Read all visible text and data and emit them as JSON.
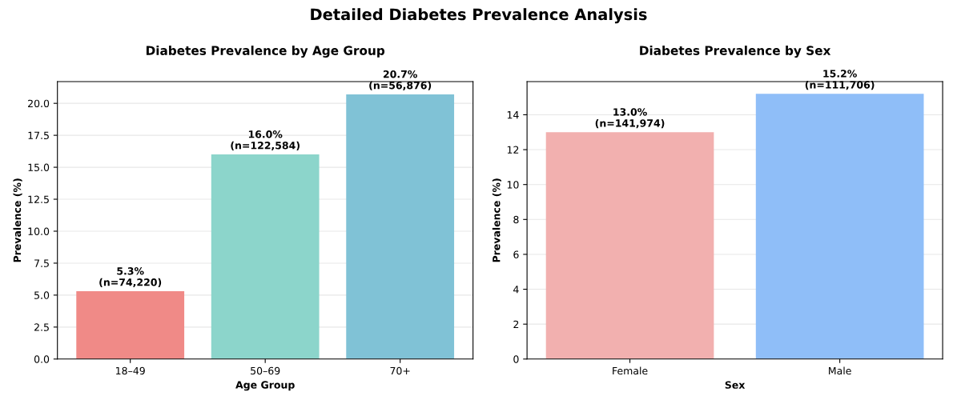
{
  "chart_data": [
    {
      "type": "bar",
      "title": "Diabetes Prevalence by Age Group",
      "xlabel": "Age Group",
      "ylabel": "Prevalence (%)",
      "annotations": [
        "Detailed Diabetes Prevalence Analysis"
      ],
      "categories": [
        "18–49",
        "50–69",
        "70+"
      ],
      "values": [
        5.3,
        16.0,
        20.7
      ],
      "colors": [
        "#f08a87",
        "#8cd5cb",
        "#80c2d6"
      ],
      "value_labels": [
        "5.3%\n(n=74,220)",
        "16.0%\n(n=122,584)",
        "20.7%\n(n=56,876)"
      ],
      "ylim": [
        0,
        21.7
      ],
      "yticks": [
        {
          "value": 0,
          "label": "0.0"
        },
        {
          "value": 2.5,
          "label": "2.5"
        },
        {
          "value": 5,
          "label": "5.0"
        },
        {
          "value": 7.5,
          "label": "7.5"
        },
        {
          "value": 10,
          "label": "10.0"
        },
        {
          "value": 12.5,
          "label": "12.5"
        },
        {
          "value": 15,
          "label": "15.0"
        },
        {
          "value": 17.5,
          "label": "17.5"
        },
        {
          "value": 20,
          "label": "20.0"
        }
      ],
      "grid": "y"
    },
    {
      "type": "bar",
      "title": "Diabetes Prevalence by Sex",
      "xlabel": "Sex",
      "ylabel": "Prevalence (%)",
      "categories": [
        "Female",
        "Male"
      ],
      "values": [
        13.0,
        15.2
      ],
      "colors": [
        "#f2b0af",
        "#8fbef8"
      ],
      "value_labels": [
        "13.0%\n(n=141,974)",
        "15.2%\n(n=111,706)"
      ],
      "ylim": [
        0,
        15.9
      ],
      "yticks": [
        0,
        2,
        4,
        6,
        8,
        10,
        12,
        14
      ],
      "grid": "y"
    }
  ]
}
